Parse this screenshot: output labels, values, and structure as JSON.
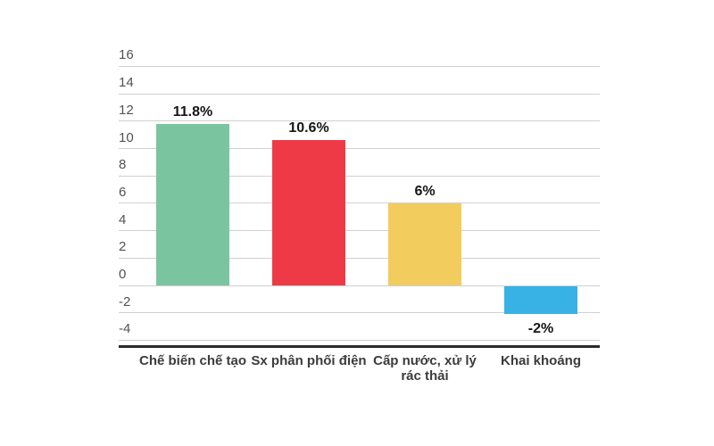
{
  "page": {
    "background": "#ffffff"
  },
  "chart_data": {
    "type": "bar",
    "title": "",
    "xlabel": "",
    "ylabel": "",
    "categories": [
      "Chế biến chế tạo",
      "Sx phân phối điện",
      "Cấp nước, xử lý rác thải",
      "Khai khoáng"
    ],
    "values": [
      11.8,
      10.6,
      6,
      -2
    ],
    "value_labels": [
      "11.8%",
      "10.6%",
      "6%",
      "-2%"
    ],
    "bar_colors": [
      "#7ac5a0",
      "#ee3a46",
      "#f3cc5e",
      "#38b2e4"
    ],
    "yticks": [
      16,
      14,
      12,
      10,
      8,
      6,
      4,
      2,
      0,
      -2,
      -4
    ],
    "ylim": [
      -4,
      16
    ],
    "ytick_step": 2,
    "grid": true,
    "legend": false
  },
  "colors": {
    "gridline": "#d0d0d0",
    "axis_line": "#2b2b2b",
    "ytick_label": "#525252",
    "value_label": "#161616",
    "category_label": "#3c3c3c",
    "background": "#ffffff"
  }
}
